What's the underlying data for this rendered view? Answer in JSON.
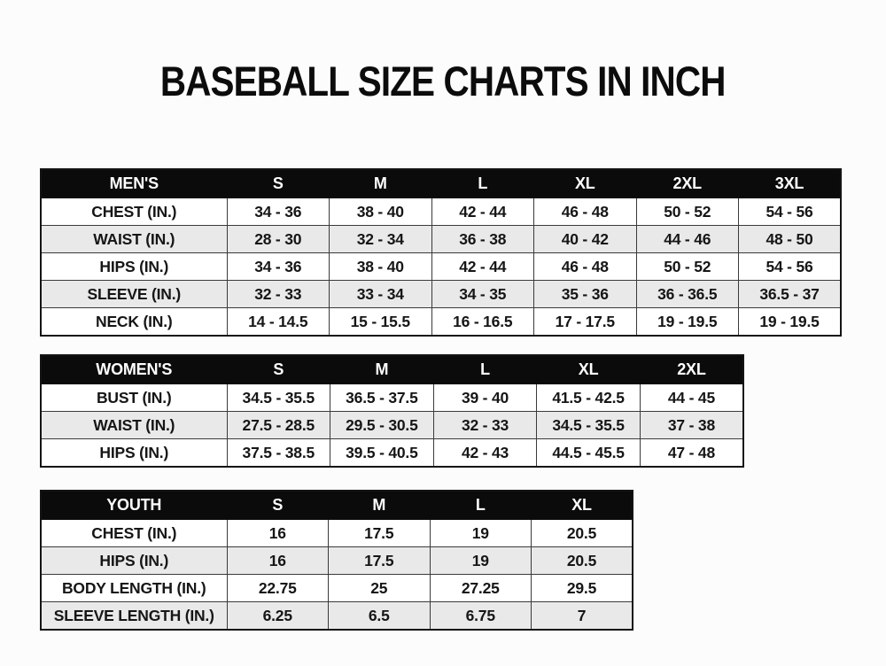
{
  "page_title": "BASEBALL SIZE CHARTS IN INCH",
  "units": "inch",
  "colors": {
    "header_bg": "#0b0b0b",
    "header_text": "#ffffff",
    "row_stripe": "#e9e9e9",
    "border": "#3a3a3a",
    "text": "#161616",
    "background": "#fcfcfc"
  },
  "chart_data": [
    {
      "type": "table",
      "name": "mens",
      "title": "MEN'S",
      "header": [
        "MEN'S",
        "S",
        "M",
        "L",
        "XL",
        "2XL",
        "3XL"
      ],
      "rows": [
        [
          "CHEST (IN.)",
          "34 - 36",
          "38 - 40",
          "42 - 44",
          "46 - 48",
          "50 - 52",
          "54 - 56"
        ],
        [
          "WAIST (IN.)",
          "28 - 30",
          "32 - 34",
          "36 - 38",
          "40 - 42",
          "44 - 46",
          "48 - 50"
        ],
        [
          "HIPS (IN.)",
          "34 - 36",
          "38 - 40",
          "42 - 44",
          "46 - 48",
          "50 - 52",
          "54 - 56"
        ],
        [
          "SLEEVE (IN.)",
          "32 - 33",
          "33 - 34",
          "34 - 35",
          "35 - 36",
          "36 - 36.5",
          "36.5 - 37"
        ],
        [
          "NECK (IN.)",
          "14 - 14.5",
          "15 - 15.5",
          "16 - 16.5",
          "17 - 17.5",
          "19 - 19.5",
          "19 - 19.5"
        ]
      ]
    },
    {
      "type": "table",
      "name": "womens",
      "title": "WOMEN'S",
      "header": [
        "WOMEN'S",
        "S",
        "M",
        "L",
        "XL",
        "2XL"
      ],
      "rows": [
        [
          "BUST (IN.)",
          "34.5 - 35.5",
          "36.5 - 37.5",
          "39 - 40",
          "41.5 - 42.5",
          "44 - 45"
        ],
        [
          "WAIST (IN.)",
          "27.5 - 28.5",
          "29.5 - 30.5",
          "32 - 33",
          "34.5 - 35.5",
          "37 - 38"
        ],
        [
          "HIPS (IN.)",
          "37.5 - 38.5",
          "39.5 - 40.5",
          "42 - 43",
          "44.5 - 45.5",
          "47 - 48"
        ]
      ]
    },
    {
      "type": "table",
      "name": "youth",
      "title": "YOUTH",
      "header": [
        "YOUTH",
        "S",
        "M",
        "L",
        "XL"
      ],
      "rows": [
        [
          "CHEST (IN.)",
          "16",
          "17.5",
          "19",
          "20.5"
        ],
        [
          "HIPS (IN.)",
          "16",
          "17.5",
          "19",
          "20.5"
        ],
        [
          "BODY LENGTH (IN.)",
          "22.75",
          "25",
          "27.25",
          "29.5"
        ],
        [
          "SLEEVE LENGTH (IN.)",
          "6.25",
          "6.5",
          "6.75",
          "7"
        ]
      ]
    }
  ]
}
